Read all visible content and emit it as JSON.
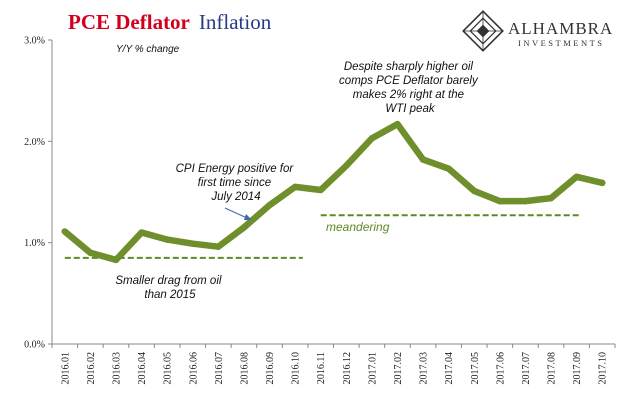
{
  "chart_data": {
    "type": "line",
    "title_part1": "PCE Deflator",
    "title_part2": "Inflation",
    "ylabel": "Y/Y % change",
    "ylim": [
      0,
      3
    ],
    "yticks": [
      {
        "value": 0,
        "label": "0.0%"
      },
      {
        "value": 1,
        "label": "1.0%"
      },
      {
        "value": 2,
        "label": "2.0%"
      },
      {
        "value": 3,
        "label": "3.0%"
      }
    ],
    "categories": [
      "2016.01",
      "2016.02",
      "2016.03",
      "2016.04",
      "2016.05",
      "2016.06",
      "2016.07",
      "2016.08",
      "2016.09",
      "2016.10",
      "2016.11",
      "2016.12",
      "2017.01",
      "2017.02",
      "2017.03",
      "2017.04",
      "2017.05",
      "2017.06",
      "2017.07",
      "2017.08",
      "2017.09",
      "2017.10"
    ],
    "series": [
      {
        "values": [
          1.11,
          0.9,
          0.83,
          1.1,
          1.03,
          0.99,
          0.96,
          1.15,
          1.37,
          1.55,
          1.52,
          1.76,
          2.03,
          2.17,
          1.82,
          1.73,
          1.51,
          1.41,
          1.41,
          1.44,
          1.65,
          1.59
        ],
        "color": "#6f8f2c"
      }
    ],
    "reference_lines": [
      {
        "value": 0.85,
        "from_index": 0,
        "to_index": 9.3,
        "color": "#5e8a26"
      },
      {
        "value": 1.27,
        "from_index": 10,
        "to_index": 20.2,
        "color": "#5e8a26"
      }
    ],
    "annotations": [
      {
        "lines": [
          "Despite sharply higher oil",
          "comps PCE Deflator barely",
          "makes 2% right at the",
          "WTI peak"
        ],
        "style": "note"
      },
      {
        "lines": [
          "CPI Energy positive for",
          "first time since",
          "July 2014"
        ],
        "style": "note"
      },
      {
        "lines": [
          "Smaller drag from oil",
          "than 2015"
        ],
        "style": "note"
      },
      {
        "lines": [
          "meandering"
        ],
        "style": "note-green"
      }
    ],
    "grid": false,
    "legend": "none"
  },
  "logo": {
    "name": "ALHAMBRA",
    "sub": "INVESTMENTS",
    "color": "#333333"
  }
}
